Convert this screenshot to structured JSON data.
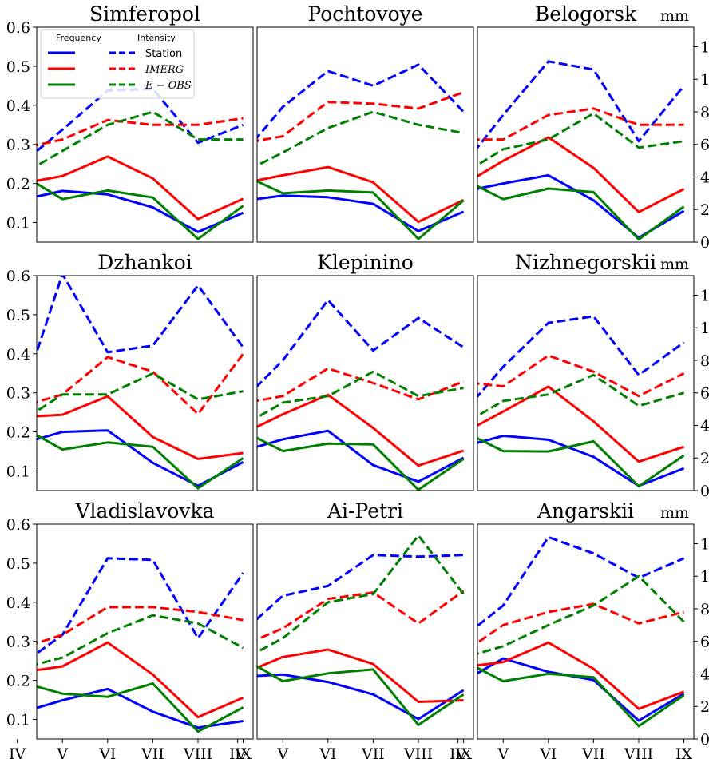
{
  "chart_data": {
    "type": "line",
    "months": [
      "IV",
      "V",
      "VI",
      "VII",
      "VIII",
      "IX"
    ],
    "left_axis": {
      "ylim": [
        0.05,
        0.6
      ],
      "ticks": [
        "0.1",
        "0.2",
        "0.3",
        "0.4",
        "0.5",
        "0.6"
      ]
    },
    "right_axis": {
      "label": "mm",
      "ylim": [
        0,
        13.2
      ],
      "ticks": [
        "0",
        "2",
        "4",
        "6",
        "8",
        "10",
        "12"
      ]
    },
    "legend": {
      "placement": "top-left of first panel",
      "frequency_header": "Frequency",
      "intensity_header": "Intensity",
      "entries": [
        {
          "label": "Station",
          "italic": false
        },
        {
          "label": "IMERG",
          "italic": true
        },
        {
          "label": "E − OBS",
          "italic": true
        }
      ]
    },
    "colors": {
      "Station": "#0000ff",
      "IMERG": "#ff0000",
      "E-OBS": "#008000"
    },
    "panels": [
      {
        "title": "Simferopol",
        "frequency": {
          "Station": [
            0.156,
            0.181,
            0.172,
            0.139,
            0.076,
            0.125
          ],
          "IMERG": [
            0.198,
            0.219,
            0.269,
            0.213,
            0.109,
            0.161
          ],
          "E-OBS": [
            0.23,
            0.16,
            0.182,
            0.164,
            0.058,
            0.143
          ]
        },
        "intensity": {
          "Station": [
            4.6,
            6.9,
            9.3,
            9.4,
            6.1,
            7.2
          ],
          "IMERG": [
            5.7,
            6.3,
            7.5,
            7.2,
            7.2,
            7.6
          ],
          "E-OBS": [
            4.0,
            5.6,
            7.2,
            8.0,
            6.3,
            6.3
          ]
        }
      },
      {
        "title": "Pochtovoye",
        "frequency": {
          "Station": [
            0.154,
            0.169,
            0.165,
            0.148,
            0.078,
            0.128
          ],
          "IMERG": [
            0.198,
            0.221,
            0.242,
            0.203,
            0.102,
            0.158
          ],
          "E-OBS": [
            0.229,
            0.175,
            0.182,
            0.177,
            0.058,
            0.157
          ]
        },
        "intensity": {
          "Station": [
            5.0,
            8.3,
            10.5,
            9.6,
            10.9,
            8.0
          ],
          "IMERG": [
            6.0,
            6.5,
            8.6,
            8.5,
            8.2,
            9.2
          ],
          "E-OBS": [
            4.1,
            5.5,
            7.0,
            8.0,
            7.2,
            6.7
          ]
        }
      },
      {
        "title": "Belogorsk",
        "frequency": {
          "Station": [
            0.176,
            0.2,
            0.221,
            0.157,
            0.061,
            0.13
          ],
          "IMERG": [
            0.189,
            0.258,
            0.318,
            0.24,
            0.127,
            0.186
          ],
          "E-OBS": [
            0.218,
            0.16,
            0.187,
            0.178,
            0.057,
            0.141
          ]
        },
        "intensity": {
          "Station": [
            4.3,
            7.8,
            11.1,
            10.6,
            6.2,
            9.6
          ],
          "IMERG": [
            6.3,
            6.3,
            7.8,
            8.2,
            7.2,
            7.2
          ],
          "E-OBS": [
            4.0,
            5.7,
            6.3,
            7.9,
            5.8,
            6.2
          ]
        }
      },
      {
        "title": "Dzhankoi",
        "frequency": {
          "Station": [
            0.167,
            0.2,
            0.204,
            0.121,
            0.062,
            0.123
          ],
          "IMERG": [
            0.237,
            0.244,
            0.291,
            0.187,
            0.131,
            0.146
          ],
          "E-OBS": [
            0.219,
            0.155,
            0.173,
            0.162,
            0.056,
            0.133
          ]
        },
        "intensity": {
          "Station": [
            4.9,
            13.3,
            8.5,
            8.9,
            12.6,
            8.8
          ],
          "IMERG": [
            5.1,
            5.9,
            8.2,
            7.3,
            4.7,
            8.4
          ],
          "E-OBS": [
            4.1,
            5.9,
            5.9,
            7.2,
            5.6,
            6.1
          ]
        }
      },
      {
        "title": "Klepinino",
        "frequency": {
          "Station": [
            0.148,
            0.181,
            0.203,
            0.115,
            0.073,
            0.134
          ],
          "IMERG": [
            0.189,
            0.245,
            0.295,
            0.21,
            0.114,
            0.152
          ],
          "E-OBS": [
            0.21,
            0.151,
            0.17,
            0.168,
            0.052,
            0.131
          ]
        },
        "intensity": {
          "Station": [
            5.2,
            8.0,
            11.7,
            8.6,
            10.6,
            8.8
          ],
          "IMERG": [
            5.3,
            5.8,
            7.5,
            6.6,
            5.6,
            6.7
          ],
          "E-OBS": [
            3.8,
            5.4,
            5.8,
            7.3,
            5.8,
            6.3
          ]
        }
      },
      {
        "title": "Nizhnegorskii",
        "frequency": {
          "Station": [
            0.159,
            0.19,
            0.18,
            0.136,
            0.062,
            0.107
          ],
          "IMERG": [
            0.19,
            0.252,
            0.316,
            0.227,
            0.124,
            0.162
          ],
          "E-OBS": [
            0.208,
            0.151,
            0.15,
            0.176,
            0.061,
            0.14
          ]
        },
        "intensity": {
          "Station": [
            4.4,
            7.6,
            10.3,
            10.7,
            7.1,
            9.1
          ],
          "IMERG": [
            6.7,
            6.4,
            8.3,
            7.3,
            5.8,
            7.2
          ],
          "E-OBS": [
            3.9,
            5.5,
            5.9,
            7.1,
            5.2,
            6.0
          ]
        }
      },
      {
        "title": "Vladislavovka",
        "frequency": {
          "Station": [
            0.115,
            0.149,
            0.178,
            0.12,
            0.079,
            0.096
          ],
          "IMERG": [
            0.219,
            0.236,
            0.297,
            0.215,
            0.106,
            0.156
          ],
          "E-OBS": [
            0.198,
            0.166,
            0.158,
            0.192,
            0.069,
            0.131
          ]
        },
        "intensity": {
          "Station": [
            4.4,
            6.4,
            11.1,
            11.0,
            6.2,
            10.2
          ],
          "IMERG": [
            5.5,
            6.4,
            8.1,
            8.1,
            7.8,
            7.3
          ],
          "E-OBS": [
            4.3,
            5.0,
            6.5,
            7.6,
            7.1,
            5.6
          ]
        }
      },
      {
        "title": "Ai-Petri",
        "frequency": {
          "Station": [
            0.209,
            0.215,
            0.196,
            0.164,
            0.101,
            0.175
          ],
          "IMERG": [
            0.212,
            0.26,
            0.279,
            0.242,
            0.145,
            0.149
          ],
          "E-OBS": [
            0.265,
            0.198,
            0.218,
            0.228,
            0.086,
            0.164
          ]
        },
        "intensity": {
          "Station": [
            6.3,
            8.8,
            9.4,
            11.3,
            11.2,
            11.3
          ],
          "IMERG": [
            5.6,
            6.8,
            8.6,
            9.0,
            7.1,
            9.1
          ],
          "E-OBS": [
            4.7,
            6.2,
            8.4,
            8.9,
            12.5,
            8.9
          ]
        }
      },
      {
        "title": "Angarskii",
        "frequency": {
          "Station": [
            0.19,
            0.256,
            0.222,
            0.201,
            0.097,
            0.166
          ],
          "IMERG": [
            0.232,
            0.247,
            0.297,
            0.23,
            0.127,
            0.171
          ],
          "E-OBS": [
            0.258,
            0.198,
            0.217,
            0.208,
            0.083,
            0.162
          ]
        },
        "intensity": {
          "Station": [
            6.0,
            8.2,
            12.4,
            11.4,
            9.9,
            11.1
          ],
          "IMERG": [
            5.1,
            7.0,
            7.8,
            8.3,
            7.1,
            7.8
          ],
          "E-OBS": [
            4.9,
            5.7,
            7.0,
            8.2,
            10.0,
            7.2
          ]
        }
      }
    ]
  }
}
